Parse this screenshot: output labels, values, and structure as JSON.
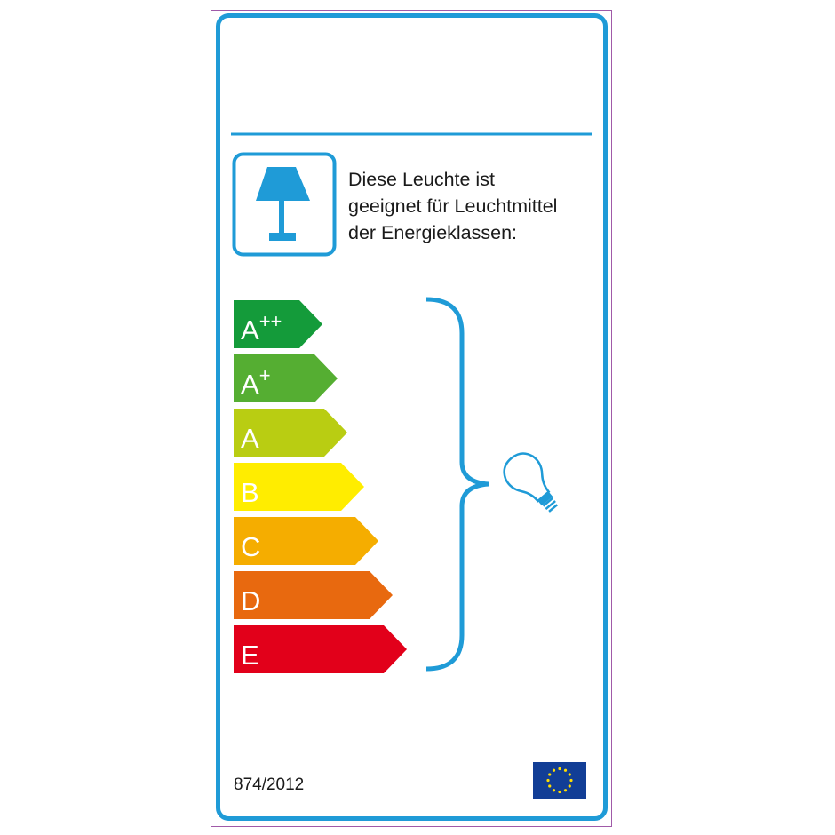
{
  "label": {
    "description_lines": [
      "Diese Leuchte ist",
      "geeignet für Leuchtmittel",
      "der Energieklassen:"
    ],
    "regulation": "874/2012",
    "energy_classes": [
      {
        "letter": "A",
        "sup": "++",
        "color": "#149b3a"
      },
      {
        "letter": "A",
        "sup": "+",
        "color": "#55ae32"
      },
      {
        "letter": "A",
        "sup": "",
        "color": "#b9cd12"
      },
      {
        "letter": "B",
        "sup": "",
        "color": "#ffed00"
      },
      {
        "letter": "C",
        "sup": "",
        "color": "#f5ad00"
      },
      {
        "letter": "D",
        "sup": "",
        "color": "#e8690f"
      },
      {
        "letter": "E",
        "sup": "",
        "color": "#e2001a"
      }
    ],
    "accent_color": "#1f9bd7",
    "icons": [
      "lamp-icon",
      "light-bulb-icon",
      "eu-flag-icon"
    ]
  }
}
